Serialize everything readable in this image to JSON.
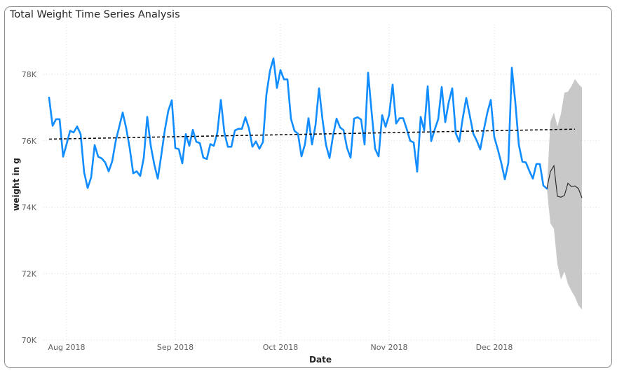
{
  "chart_data": {
    "type": "line",
    "title": "Total Weight Time Series Analysis",
    "xlabel": "Date",
    "ylabel": "weight in g",
    "x_start": "2018-07-27",
    "x_ticks": [
      "Aug 2018",
      "Sep 2018",
      "Oct 2018",
      "Nov 2018",
      "Dec 2018"
    ],
    "x_tick_dates": [
      "2018-08-01",
      "2018-09-01",
      "2018-10-01",
      "2018-11-01",
      "2018-12-01"
    ],
    "y_ticks": [
      "70K",
      "72K",
      "74K",
      "76K",
      "78K"
    ],
    "y_tick_values": [
      70000,
      72000,
      74000,
      76000,
      78000
    ],
    "ylim": [
      70000,
      79500
    ],
    "grid": "dotted",
    "series": [
      {
        "name": "",
        "color": "#118DFF",
        "values": [
          77300,
          76450,
          76650,
          76650,
          75520,
          75900,
          76300,
          76250,
          76430,
          76200,
          75050,
          74580,
          74900,
          75870,
          75520,
          75470,
          75350,
          75080,
          75380,
          75990,
          76420,
          76850,
          76380,
          75780,
          75020,
          75080,
          74940,
          75480,
          76720,
          75850,
          75290,
          74860,
          75560,
          76310,
          76900,
          77220,
          75780,
          75750,
          75320,
          76200,
          75850,
          76330,
          75970,
          75930,
          75490,
          75450,
          75900,
          75850,
          76250,
          77230,
          76250,
          75820,
          75820,
          76310,
          76360,
          76360,
          76710,
          76380,
          75820,
          75980,
          75760,
          75960,
          77400,
          78100,
          78480,
          77590,
          78130,
          77850,
          77850,
          76660,
          76300,
          76210,
          75530,
          75900,
          76680,
          75890,
          76470,
          77580,
          76640,
          75870,
          75480,
          76150,
          76670,
          76400,
          76320,
          75780,
          75490,
          76670,
          76710,
          76640,
          75890,
          78050,
          76870,
          75760,
          75530,
          76770,
          76420,
          76780,
          77690,
          76520,
          76680,
          76680,
          76360,
          76000,
          75950,
          75070,
          76720,
          76310,
          77640,
          75990,
          76340,
          76650,
          77620,
          76560,
          77160,
          77580,
          76230,
          75970,
          76680,
          77290,
          76760,
          76220,
          76000,
          75740,
          76320,
          76840,
          77230,
          76110,
          75740,
          75330,
          74840,
          75330,
          78200,
          77150,
          75880,
          75370,
          75350,
          75090,
          74860,
          75300,
          75300,
          74650,
          74560
        ],
        "dates_note": "daily values, one per day"
      }
    ],
    "trend": {
      "start": 76050,
      "end": 76350,
      "color": "#000000",
      "style": "dashed"
    },
    "forecast": {
      "values": [
        74560,
        75070,
        75250,
        74330,
        74300,
        74350,
        74720,
        74620,
        74640,
        74560,
        74280
      ],
      "upper": [
        74560,
        76580,
        76850,
        76430,
        76810,
        77450,
        77480,
        77640,
        77860,
        77710,
        77600
      ],
      "lower": [
        74560,
        73510,
        73350,
        72280,
        71820,
        72060,
        71690,
        71480,
        71300,
        71040,
        70920
      ],
      "band_color": "#C8C8C8",
      "line_color": "#252423"
    }
  }
}
